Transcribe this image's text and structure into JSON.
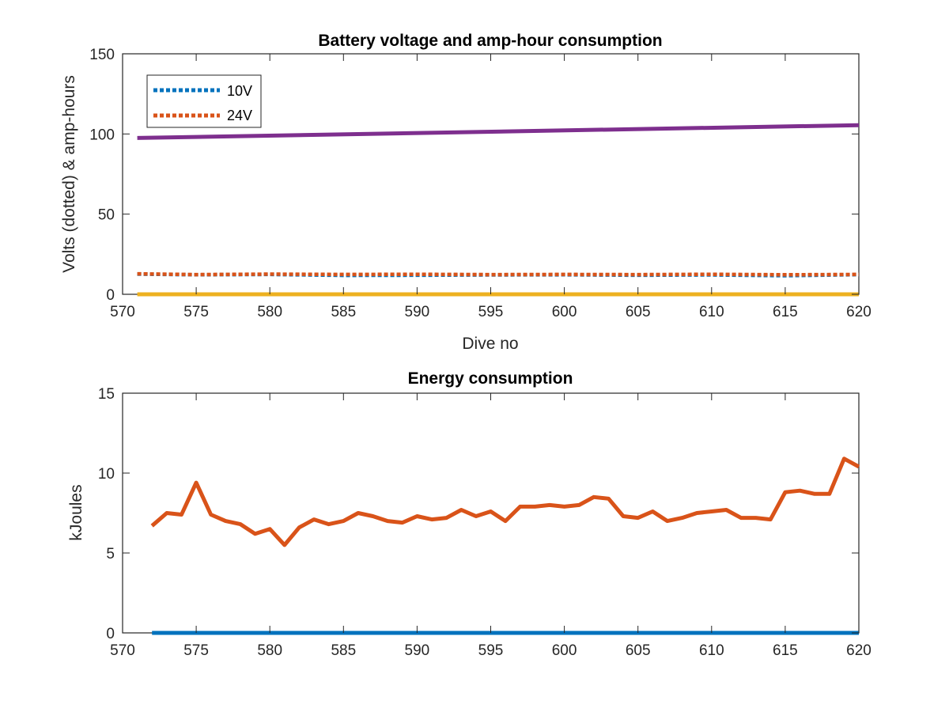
{
  "chart_data": [
    {
      "type": "line",
      "title": "Battery voltage and amp-hour consumption",
      "xlabel": "Dive no",
      "ylabel": "Volts (dotted) & amp-hours",
      "xlim": [
        570,
        620
      ],
      "ylim": [
        0,
        150
      ],
      "xticks": [
        570,
        575,
        580,
        585,
        590,
        595,
        600,
        605,
        610,
        615,
        620
      ],
      "yticks": [
        0,
        50,
        100,
        150
      ],
      "grid": false,
      "legend": {
        "position": "top-left",
        "entries": [
          "10V",
          "24V"
        ]
      },
      "series": [
        {
          "name": "10V",
          "style": "dotted",
          "color": "#0072BD",
          "x": [
            571,
            575,
            580,
            585,
            590,
            595,
            600,
            605,
            610,
            615,
            620
          ],
          "y": [
            12.6,
            12.2,
            12.4,
            11.8,
            11.9,
            12.1,
            12.2,
            11.9,
            12.1,
            11.6,
            12.3
          ]
        },
        {
          "name": "24V",
          "style": "dotted",
          "color": "#D95319",
          "x": [
            571,
            575,
            580,
            585,
            590,
            595,
            600,
            605,
            610,
            615,
            620
          ],
          "y": [
            12.8,
            12.3,
            12.6,
            12.4,
            12.5,
            12.3,
            12.4,
            12.3,
            12.5,
            12.2,
            12.4
          ]
        },
        {
          "style": "solid",
          "color": "#7E2F8E",
          "x": [
            571,
            620
          ],
          "y": [
            97.5,
            105.5
          ]
        },
        {
          "style": "solid",
          "color": "#EDB120",
          "x": [
            571,
            620
          ],
          "y": [
            0,
            0
          ]
        }
      ]
    },
    {
      "type": "line",
      "title": "Energy consumption",
      "xlabel": "",
      "ylabel": "kJoules",
      "xlim": [
        570,
        620
      ],
      "ylim": [
        0,
        15
      ],
      "xticks": [
        570,
        575,
        580,
        585,
        590,
        595,
        600,
        605,
        610,
        615,
        620
      ],
      "yticks": [
        0,
        5,
        10,
        15
      ],
      "grid": false,
      "series": [
        {
          "style": "solid",
          "color": "#0072BD",
          "x": [
            572,
            620
          ],
          "y": [
            0,
            0
          ]
        },
        {
          "style": "solid",
          "color": "#D95319",
          "x": [
            572,
            573,
            574,
            575,
            576,
            577,
            578,
            579,
            580,
            581,
            582,
            583,
            584,
            585,
            586,
            587,
            588,
            589,
            590,
            591,
            592,
            593,
            594,
            595,
            596,
            597,
            598,
            599,
            600,
            601,
            602,
            603,
            604,
            605,
            606,
            607,
            608,
            609,
            610,
            611,
            612,
            613,
            614,
            615,
            616,
            617,
            618,
            619,
            620
          ],
          "y": [
            6.7,
            7.5,
            7.4,
            9.4,
            7.4,
            7.0,
            6.8,
            6.2,
            6.5,
            5.5,
            6.6,
            7.1,
            6.8,
            7.0,
            7.5,
            7.3,
            7.0,
            6.9,
            7.3,
            7.1,
            7.2,
            7.7,
            7.3,
            7.6,
            7.0,
            7.9,
            7.9,
            8.0,
            7.9,
            8.0,
            8.5,
            8.4,
            7.3,
            7.2,
            7.6,
            7.0,
            7.2,
            7.5,
            7.6,
            7.7,
            7.2,
            7.2,
            7.1,
            8.8,
            8.9,
            8.7,
            8.7,
            10.9,
            10.4
          ]
        }
      ]
    }
  ]
}
